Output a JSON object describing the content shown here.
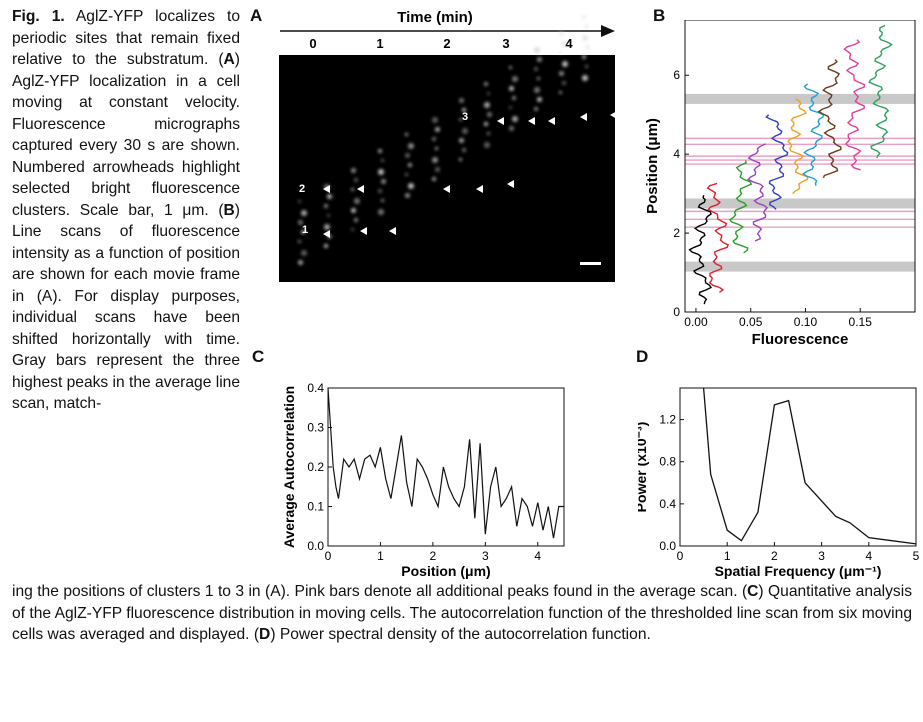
{
  "figure": {
    "fig_label": "Fig. 1.",
    "caption_left": {
      "intro": " AglZ-YFP localizes to periodic sites that remain fixed relative to the substratum. (",
      "a_letter": "A",
      "a_text": ") AglZ-YFP localization in a cell moving at constant velocity. Fluorescence micrographs captured every 30 s are shown. Numbered arrowheads highlight selected bright fluorescence clusters. Scale bar, 1 μm. (",
      "b_letter": "B",
      "b_text": ") Line scans of fluorescence intensity as a function of position are shown for each movie frame in (A). For display purposes, individual scans have been shifted horizontally with time. Gray bars represent the three highest peaks in the average line scan, match-"
    },
    "caption_bottom": {
      "text1": "ing the positions of clusters 1 to 3 in (A). Pink bars denote all additional peaks found in the average scan. (",
      "c_letter": "C",
      "text2": ") Quantitative analysis of the AglZ-YFP fluorescence distribution in moving cells. The autocorrelation function of the thresholded line scan from six moving cells was averaged and displayed. (",
      "d_letter": "D",
      "text3": ") Power spectral density of the autocorrelation function."
    }
  },
  "panel_a": {
    "letter": "A",
    "time_label": "Time (min)",
    "time_ticks": [
      "0",
      "1",
      "2",
      "3",
      "4"
    ],
    "cluster_labels": [
      "1",
      "2",
      "3"
    ]
  },
  "panel_b": {
    "letter": "B"
  },
  "panel_c": {
    "letter": "C"
  },
  "panel_d": {
    "letter": "D"
  },
  "chart_data": [
    {
      "id": "B",
      "type": "line",
      "xlabel": "Fluorescence",
      "ylabel": "Position (μm)",
      "xlim": [
        -0.01,
        0.2
      ],
      "ylim": [
        0,
        7.4
      ],
      "xticks": [
        "0.00",
        "0.05",
        "0.10",
        "0.15"
      ],
      "yticks": [
        "0",
        "2",
        "4",
        "6"
      ],
      "gray_bars": [
        1.15,
        2.75,
        5.4
      ],
      "pink_bars": [
        2.15,
        2.35,
        2.55,
        3.75,
        3.85,
        3.95,
        4.25,
        4.4
      ],
      "colors": [
        "#000000",
        "#e0202a",
        "#2aa02a",
        "#a040c0",
        "#3040c0",
        "#f0a020",
        "#20a0d0",
        "#6b3a1a",
        "#e0409a",
        "#30a060"
      ],
      "series": [
        {
          "x": 0.005,
          "y": [
            0.2,
            3.0
          ]
        },
        {
          "x": 0.02,
          "y": [
            0.5,
            3.3
          ]
        },
        {
          "x": 0.04,
          "y": [
            1.5,
            3.9
          ]
        },
        {
          "x": 0.057,
          "y": [
            1.8,
            4.3
          ]
        },
        {
          "x": 0.075,
          "y": [
            2.6,
            5.0
          ]
        },
        {
          "x": 0.092,
          "y": [
            3.0,
            5.4
          ]
        },
        {
          "x": 0.108,
          "y": [
            3.2,
            5.8
          ]
        },
        {
          "x": 0.123,
          "y": [
            3.4,
            6.4
          ]
        },
        {
          "x": 0.145,
          "y": [
            3.6,
            6.9
          ]
        },
        {
          "x": 0.168,
          "y": [
            3.9,
            7.3
          ]
        }
      ]
    },
    {
      "id": "C",
      "type": "line",
      "xlabel": "Position (μm)",
      "ylabel": "Average Autocorrelation",
      "xlim": [
        0,
        4.5
      ],
      "ylim": [
        0,
        0.4
      ],
      "xticks": [
        "0",
        "1",
        "2",
        "3",
        "4"
      ],
      "yticks": [
        "0.0",
        "0.1",
        "0.2",
        "0.3",
        "0.4"
      ],
      "x": [
        0,
        0.05,
        0.1,
        0.15,
        0.2,
        0.3,
        0.4,
        0.5,
        0.6,
        0.7,
        0.8,
        0.9,
        1.0,
        1.1,
        1.2,
        1.3,
        1.4,
        1.5,
        1.6,
        1.7,
        1.8,
        1.9,
        2.0,
        2.1,
        2.2,
        2.3,
        2.4,
        2.5,
        2.6,
        2.7,
        2.8,
        2.9,
        3.0,
        3.1,
        3.2,
        3.3,
        3.4,
        3.5,
        3.6,
        3.7,
        3.8,
        3.9,
        4.0,
        4.1,
        4.2,
        4.3,
        4.4,
        4.5
      ],
      "y": [
        0.4,
        0.3,
        0.2,
        0.15,
        0.12,
        0.22,
        0.2,
        0.22,
        0.17,
        0.22,
        0.23,
        0.2,
        0.25,
        0.17,
        0.12,
        0.2,
        0.28,
        0.16,
        0.1,
        0.22,
        0.2,
        0.17,
        0.13,
        0.1,
        0.2,
        0.15,
        0.12,
        0.1,
        0.15,
        0.27,
        0.07,
        0.26,
        0.03,
        0.15,
        0.2,
        0.1,
        0.12,
        0.15,
        0.05,
        0.12,
        0.1,
        0.05,
        0.11,
        0.04,
        0.1,
        0.02,
        0.1,
        0.1
      ]
    },
    {
      "id": "D",
      "type": "line",
      "xlabel": "Spatial Frequency (μm⁻¹)",
      "ylabel": "Power (x10⁻³)",
      "xlim": [
        0,
        5
      ],
      "ylim": [
        0,
        1.5
      ],
      "xticks": [
        "0",
        "1",
        "2",
        "3",
        "4",
        "5"
      ],
      "yticks": [
        "0.0",
        "0.4",
        "0.8",
        "1.2"
      ],
      "x": [
        0.5,
        0.65,
        1.0,
        1.3,
        1.65,
        2.0,
        2.3,
        2.65,
        3.3,
        3.6,
        4.0,
        5.0
      ],
      "y": [
        1.6,
        0.68,
        0.15,
        0.05,
        0.32,
        1.34,
        1.38,
        0.6,
        0.28,
        0.22,
        0.08,
        0.02
      ]
    }
  ]
}
